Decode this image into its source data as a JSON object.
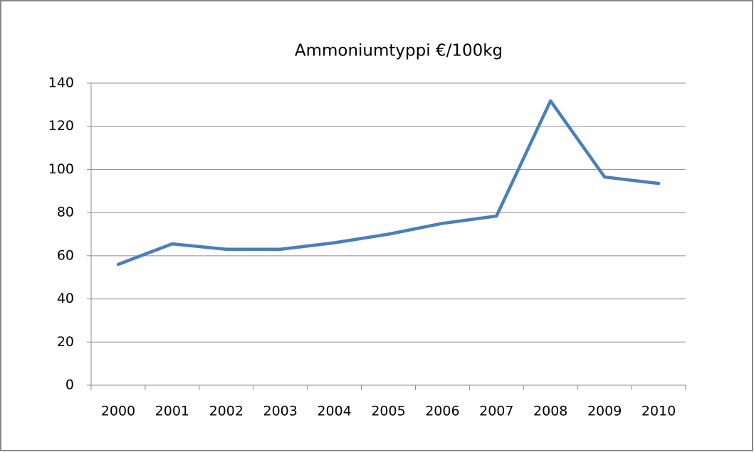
{
  "chart_data": {
    "type": "line",
    "title": "Ammoniumtyppi €/100kg",
    "categories": [
      "2000",
      "2001",
      "2002",
      "2003",
      "2004",
      "2005",
      "2006",
      "2007",
      "2008",
      "2009",
      "2010"
    ],
    "values": [
      56,
      65.5,
      63,
      63,
      66,
      70,
      75,
      78.4,
      131.8,
      96.5,
      93.5
    ],
    "color": "#4a7ebb",
    "ylim": [
      0,
      140
    ],
    "yticks": [
      0,
      20,
      40,
      60,
      80,
      100,
      120,
      140
    ],
    "grid": true
  }
}
